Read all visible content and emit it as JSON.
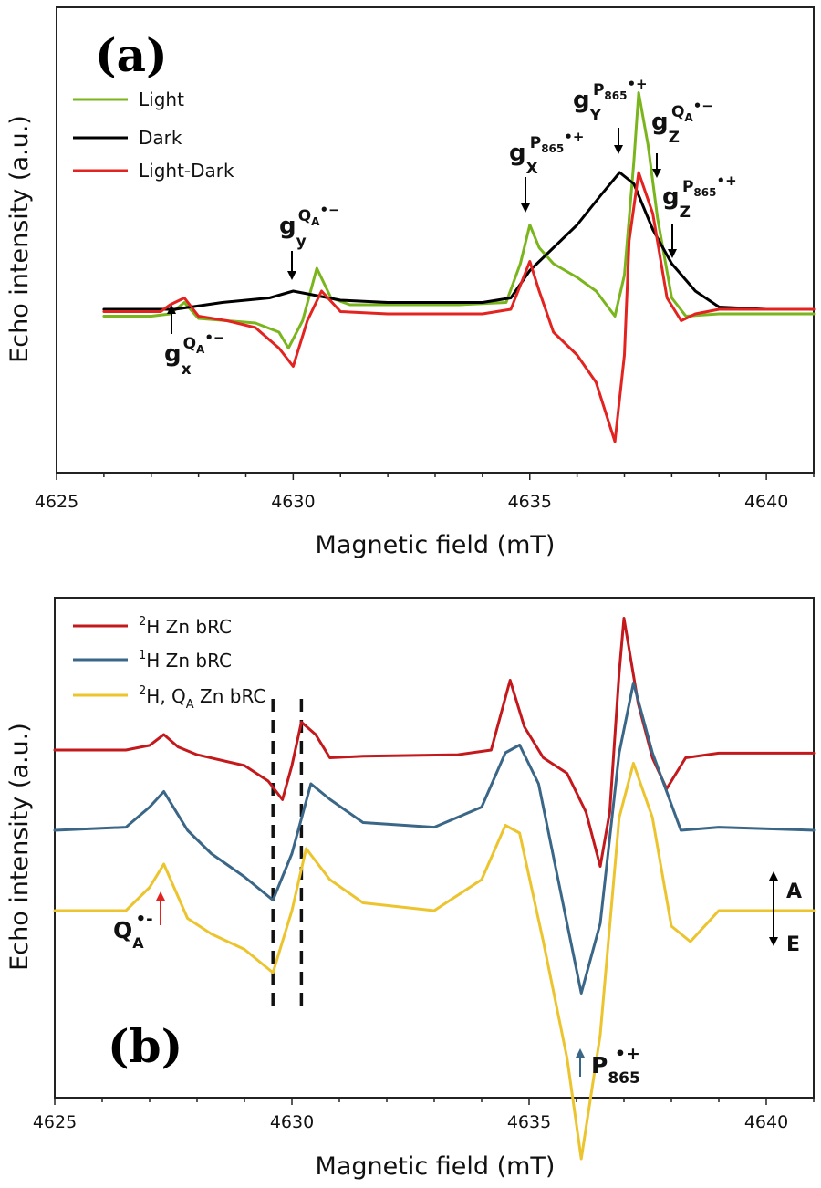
{
  "chart_data": [
    {
      "type": "line",
      "panel_label": "(a)",
      "xlabel": "Magnetic field (mT)",
      "ylabel": "Echo intensity (a.u.)",
      "xlim": [
        4625,
        4641
      ],
      "xticks": [
        "4625",
        "4630",
        "4635",
        "4640"
      ],
      "legend_position": "top-left",
      "series": [
        {
          "name": "Light",
          "color": "#7ab51d",
          "points": [
            [
              4626.0,
              -0.03
            ],
            [
              4627.0,
              -0.03
            ],
            [
              4627.4,
              -0.02
            ],
            [
              4627.7,
              0.03
            ],
            [
              4628.0,
              -0.04
            ],
            [
              4628.6,
              -0.05
            ],
            [
              4629.2,
              -0.06
            ],
            [
              4629.7,
              -0.1
            ],
            [
              4629.9,
              -0.17
            ],
            [
              4630.2,
              -0.05
            ],
            [
              4630.5,
              0.18
            ],
            [
              4630.8,
              0.05
            ],
            [
              4631.2,
              0.02
            ],
            [
              4633.5,
              0.02
            ],
            [
              4634.5,
              0.03
            ],
            [
              4634.8,
              0.2
            ],
            [
              4635.0,
              0.37
            ],
            [
              4635.2,
              0.27
            ],
            [
              4635.5,
              0.2
            ],
            [
              4636.0,
              0.14
            ],
            [
              4636.4,
              0.08
            ],
            [
              4636.8,
              -0.03
            ],
            [
              4637.0,
              0.15
            ],
            [
              4637.2,
              0.65
            ],
            [
              4637.3,
              0.95
            ],
            [
              4637.5,
              0.72
            ],
            [
              4637.7,
              0.4
            ],
            [
              4638.0,
              0.05
            ],
            [
              4638.3,
              -0.03
            ],
            [
              4639.0,
              -0.02
            ],
            [
              4641.0,
              -0.02
            ]
          ]
        },
        {
          "name": "Dark",
          "color": "#000000",
          "points": [
            [
              4626.0,
              0.0
            ],
            [
              4627.5,
              0.0
            ],
            [
              4628.5,
              0.03
            ],
            [
              4629.5,
              0.05
            ],
            [
              4630.0,
              0.08
            ],
            [
              4630.5,
              0.06
            ],
            [
              4631.0,
              0.04
            ],
            [
              4632.0,
              0.03
            ],
            [
              4634.0,
              0.03
            ],
            [
              4634.6,
              0.05
            ],
            [
              4635.0,
              0.17
            ],
            [
              4635.5,
              0.27
            ],
            [
              4636.0,
              0.37
            ],
            [
              4636.5,
              0.5
            ],
            [
              4636.9,
              0.6
            ],
            [
              4637.2,
              0.55
            ],
            [
              4637.6,
              0.35
            ],
            [
              4638.0,
              0.2
            ],
            [
              4638.5,
              0.08
            ],
            [
              4639.0,
              0.01
            ],
            [
              4640.0,
              0.0
            ],
            [
              4641.0,
              0.0
            ]
          ]
        },
        {
          "name": "Light-Dark",
          "color": "#e32320",
          "points": [
            [
              4626.0,
              -0.01
            ],
            [
              4627.2,
              -0.01
            ],
            [
              4627.4,
              0.02
            ],
            [
              4627.7,
              0.05
            ],
            [
              4628.0,
              -0.03
            ],
            [
              4628.6,
              -0.05
            ],
            [
              4629.2,
              -0.08
            ],
            [
              4629.7,
              -0.17
            ],
            [
              4630.0,
              -0.25
            ],
            [
              4630.3,
              -0.05
            ],
            [
              4630.6,
              0.08
            ],
            [
              4631.0,
              -0.01
            ],
            [
              4632.0,
              -0.02
            ],
            [
              4634.0,
              -0.02
            ],
            [
              4634.6,
              0.0
            ],
            [
              4635.0,
              0.21
            ],
            [
              4635.2,
              0.08
            ],
            [
              4635.5,
              -0.1
            ],
            [
              4636.0,
              -0.2
            ],
            [
              4636.4,
              -0.32
            ],
            [
              4636.8,
              -0.58
            ],
            [
              4637.0,
              -0.2
            ],
            [
              4637.1,
              0.3
            ],
            [
              4637.3,
              0.6
            ],
            [
              4637.6,
              0.42
            ],
            [
              4637.9,
              0.05
            ],
            [
              4638.2,
              -0.05
            ],
            [
              4638.5,
              -0.02
            ],
            [
              4639.0,
              0.0
            ],
            [
              4641.0,
              0.0
            ]
          ]
        }
      ],
      "annotations": [
        {
          "base": "g",
          "sub": "x",
          "sup": "Q",
          "sup_sub": "A",
          "mark": "•−",
          "arrow": "up"
        },
        {
          "base": "g",
          "sub": "y",
          "sup": "Q",
          "sup_sub": "A",
          "mark": "•−",
          "arrow": "down"
        },
        {
          "base": "g",
          "sub": "X",
          "sup": "P",
          "sup_sub": "865",
          "mark": "•+",
          "arrow": "down"
        },
        {
          "base": "g",
          "sub": "Y",
          "sup": "P",
          "sup_sub": "865",
          "mark": "•+",
          "arrow": "down"
        },
        {
          "base": "g",
          "sub": "Z",
          "sup": "Q",
          "sup_sub": "A",
          "mark": "•−",
          "arrow": "down"
        },
        {
          "base": "g",
          "sub": "Z",
          "sup": "P",
          "sup_sub": "865",
          "mark": "•+",
          "arrow": "down"
        }
      ]
    },
    {
      "type": "line",
      "panel_label": "(b)",
      "xlabel": "Magnetic field (mT)",
      "ylabel": "Echo intensity (a.u.)",
      "xlim": [
        4625,
        4641
      ],
      "xticks": [
        "4625",
        "4630",
        "4635",
        "4640"
      ],
      "legend_position": "top-left",
      "series": [
        {
          "name_parts": {
            "sup": "2",
            "text": "H Zn bRC"
          },
          "color": "#c4191c",
          "offset": 1.0,
          "points": [
            [
              4625.0,
              0.0
            ],
            [
              4626.5,
              0.0
            ],
            [
              4627.0,
              0.03
            ],
            [
              4627.3,
              0.1
            ],
            [
              4627.6,
              0.02
            ],
            [
              4628.0,
              -0.03
            ],
            [
              4629.0,
              -0.1
            ],
            [
              4629.5,
              -0.2
            ],
            [
              4629.8,
              -0.32
            ],
            [
              4630.0,
              -0.1
            ],
            [
              4630.2,
              0.18
            ],
            [
              4630.5,
              0.1
            ],
            [
              4630.8,
              -0.05
            ],
            [
              4631.5,
              -0.04
            ],
            [
              4633.5,
              -0.03
            ],
            [
              4634.2,
              0.0
            ],
            [
              4634.6,
              0.45
            ],
            [
              4634.9,
              0.15
            ],
            [
              4635.3,
              -0.05
            ],
            [
              4635.8,
              -0.15
            ],
            [
              4636.2,
              -0.4
            ],
            [
              4636.5,
              -0.75
            ],
            [
              4636.7,
              -0.4
            ],
            [
              4636.9,
              0.5
            ],
            [
              4637.0,
              0.85
            ],
            [
              4637.3,
              0.3
            ],
            [
              4637.6,
              -0.05
            ],
            [
              4637.9,
              -0.25
            ],
            [
              4638.3,
              -0.05
            ],
            [
              4639.0,
              -0.02
            ],
            [
              4641.0,
              -0.02
            ]
          ]
        },
        {
          "name_parts": {
            "sup": "1",
            "text": "H Zn bRC"
          },
          "color": "#3a6687",
          "offset": 0.0,
          "points": [
            [
              4625.0,
              0.0
            ],
            [
              4626.5,
              0.02
            ],
            [
              4627.0,
              0.15
            ],
            [
              4627.3,
              0.25
            ],
            [
              4627.8,
              0.0
            ],
            [
              4628.3,
              -0.15
            ],
            [
              4629.0,
              -0.3
            ],
            [
              4629.6,
              -0.45
            ],
            [
              4630.0,
              -0.15
            ],
            [
              4630.4,
              0.3
            ],
            [
              4630.8,
              0.2
            ],
            [
              4631.5,
              0.05
            ],
            [
              4633.0,
              0.02
            ],
            [
              4634.0,
              0.15
            ],
            [
              4634.5,
              0.5
            ],
            [
              4634.8,
              0.55
            ],
            [
              4635.2,
              0.3
            ],
            [
              4635.6,
              -0.3
            ],
            [
              4636.1,
              -1.05
            ],
            [
              4636.5,
              -0.6
            ],
            [
              4636.9,
              0.5
            ],
            [
              4637.2,
              0.95
            ],
            [
              4637.6,
              0.5
            ],
            [
              4638.2,
              0.0
            ],
            [
              4639.0,
              0.02
            ],
            [
              4641.0,
              0.0
            ]
          ]
        },
        {
          "name_parts": {
            "sup": "2",
            "text": "H, Q",
            "sub": "A",
            "tail": " Zn bRC"
          },
          "color": "#ecc42e",
          "offset": -1.0,
          "points": [
            [
              4625.0,
              0.0
            ],
            [
              4626.5,
              0.0
            ],
            [
              4627.0,
              0.15
            ],
            [
              4627.3,
              0.3
            ],
            [
              4627.8,
              -0.05
            ],
            [
              4628.3,
              -0.15
            ],
            [
              4629.0,
              -0.25
            ],
            [
              4629.6,
              -0.4
            ],
            [
              4630.0,
              0.0
            ],
            [
              4630.3,
              0.4
            ],
            [
              4630.8,
              0.2
            ],
            [
              4631.5,
              0.05
            ],
            [
              4633.0,
              0.0
            ],
            [
              4634.0,
              0.2
            ],
            [
              4634.5,
              0.55
            ],
            [
              4634.8,
              0.5
            ],
            [
              4635.3,
              -0.2
            ],
            [
              4635.8,
              -0.95
            ],
            [
              4636.1,
              -1.6
            ],
            [
              4636.5,
              -0.8
            ],
            [
              4636.9,
              0.6
            ],
            [
              4637.2,
              0.95
            ],
            [
              4637.6,
              0.6
            ],
            [
              4638.0,
              -0.1
            ],
            [
              4638.4,
              -0.2
            ],
            [
              4639.0,
              0.0
            ],
            [
              4641.0,
              0.0
            ]
          ]
        }
      ],
      "vlines": [
        4629.6,
        4630.2
      ],
      "annotations": {
        "qa": {
          "text": "Q",
          "sub": "A",
          "sup": "•-",
          "color": "#e32320"
        },
        "p865": {
          "text": "P",
          "sub": "865",
          "sup": "•+",
          "color": "#3a6687"
        },
        "scale_top": "A",
        "scale_bottom": "E"
      }
    }
  ]
}
